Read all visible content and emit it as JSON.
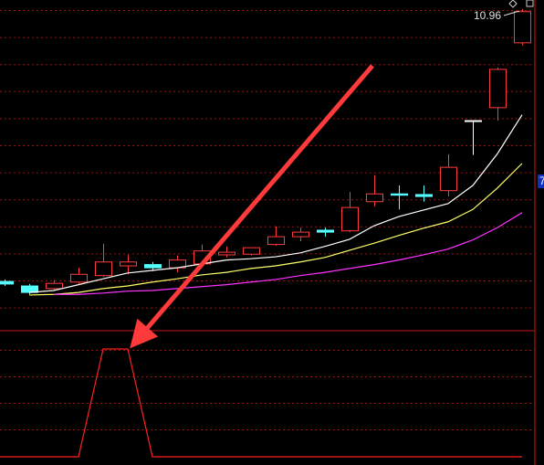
{
  "chart_data": {
    "type": "candlestick",
    "annotation": "10.96",
    "right_label": "7",
    "ylim": [
      6.0,
      11.1
    ],
    "up_color": "#ff3c3c",
    "down_color": "#54ffff",
    "flat_color": "#ffffff",
    "open": [
      6.76,
      6.69,
      6.65,
      6.75,
      6.85,
      7.0,
      7.02,
      6.97,
      7.03,
      7.17,
      7.18,
      7.33,
      7.45,
      7.55,
      7.54,
      7.99,
      8.11,
      8.1,
      8.16,
      9.24,
      9.44,
      10.44
    ],
    "high": [
      6.79,
      6.72,
      6.78,
      6.97,
      7.34,
      7.17,
      7.06,
      7.16,
      7.33,
      7.3,
      7.28,
      7.61,
      7.59,
      7.59,
      8.14,
      8.4,
      8.24,
      8.24,
      8.72,
      9.24,
      10.06,
      10.96
    ],
    "low": [
      6.69,
      6.56,
      6.62,
      6.72,
      6.83,
      6.87,
      6.92,
      6.9,
      7.02,
      7.13,
      7.16,
      7.31,
      7.38,
      7.45,
      7.52,
      7.92,
      7.87,
      7.99,
      8.07,
      8.71,
      9.24,
      10.4
    ],
    "close": [
      6.72,
      6.59,
      6.73,
      6.87,
      7.06,
      7.06,
      6.97,
      7.09,
      7.23,
      7.21,
      7.28,
      7.45,
      7.52,
      7.52,
      7.9,
      8.11,
      8.09,
      8.07,
      8.52,
      9.24,
      10.03,
      10.92
    ],
    "series": [
      {
        "color": "#ffffff",
        "values": [
          null,
          6.59,
          6.62,
          6.71,
          6.8,
          6.89,
          6.93,
          6.97,
          7.03,
          7.09,
          7.11,
          7.14,
          7.2,
          7.3,
          7.41,
          7.62,
          7.76,
          7.86,
          7.96,
          8.24,
          8.73,
          9.33
        ]
      },
      {
        "color": "#ffff66",
        "values": [
          null,
          6.55,
          6.56,
          6.59,
          6.65,
          6.69,
          6.75,
          6.8,
          6.86,
          6.9,
          6.96,
          7.0,
          7.06,
          7.13,
          7.24,
          7.35,
          7.47,
          7.58,
          7.68,
          7.87,
          8.2,
          8.58
        ]
      },
      {
        "color": "#ff33ff",
        "values": [
          null,
          null,
          6.56,
          6.56,
          6.58,
          6.61,
          6.62,
          6.65,
          6.68,
          6.71,
          6.75,
          6.79,
          6.85,
          6.9,
          6.96,
          7.02,
          7.09,
          7.17,
          7.26,
          7.4,
          7.59,
          7.82
        ]
      }
    ],
    "indicator": {
      "color": "#ff2020",
      "ylim": [
        0,
        1
      ],
      "values": [
        0,
        0,
        0,
        0,
        1,
        1,
        0,
        0,
        0,
        0,
        0,
        0,
        0,
        0,
        0,
        0,
        0,
        0,
        0,
        0,
        0,
        0
      ]
    }
  }
}
